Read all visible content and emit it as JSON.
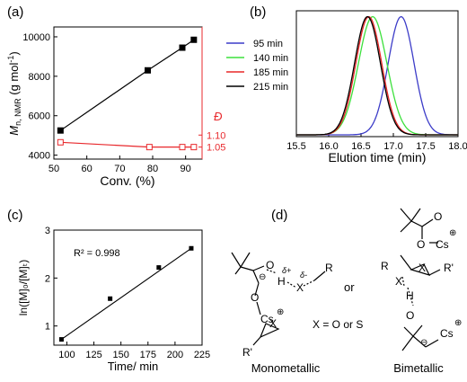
{
  "charts": {
    "a": {
      "panel_label": "(a)",
      "xlabel": "Conv. (%)",
      "ylabel_main": "M",
      "ylabel_sub": "n, NMR",
      "ylabel_unit": " (g mol",
      "ylabel_sup": "-1",
      "ylabel_close": ")",
      "y2label": "Đ",
      "x_ticks": [
        "50",
        "60",
        "70",
        "80",
        "90"
      ],
      "y_ticks": [
        "4000",
        "6000",
        "8000",
        "10000"
      ],
      "y2_ticks": [
        "1.05",
        "1.10"
      ]
    },
    "b": {
      "panel_label": "(b)",
      "xlabel": "Elution time (min)",
      "x_ticks": [
        "15.5",
        "16.0",
        "16.5",
        "17.0",
        "17.5",
        "18.0"
      ]
    },
    "c": {
      "panel_label": "(c)",
      "xlabel": "Time/ min",
      "ylabel": "ln([M]₀/[M]ₜ)",
      "x_ticks": [
        "100",
        "125",
        "150",
        "175",
        "200",
        "225"
      ],
      "y_ticks": [
        "1",
        "2",
        "3"
      ],
      "annotation": "R² = 0.998"
    }
  },
  "scheme": {
    "panel_label": "(d)",
    "or_label": "or",
    "x_label": "X = O or S",
    "mono_label": "Monometallic",
    "bi_label": "Bimetallic",
    "cs": "Cs",
    "o": "O",
    "h": "H",
    "x": "X",
    "r": "R",
    "rp": "R'",
    "delta_plus": "δ+",
    "delta_minus": "δ-",
    "plus": "⊕",
    "minus": "⊖"
  },
  "chart_data": [
    {
      "type": "scatter",
      "xlim": [
        50,
        95
      ],
      "ylim": [
        3800,
        10500
      ],
      "y2lim": [
        1.0,
        1.55
      ],
      "series": [
        {
          "axis": "left",
          "color": "#000000",
          "marker": "filled-square",
          "fit_line": true,
          "x": [
            52,
            78.5,
            89,
            92.5
          ],
          "y": [
            5250,
            8300,
            9450,
            9850
          ]
        },
        {
          "axis": "right",
          "color": "#e8282c",
          "marker": "open-square",
          "connected": true,
          "x": [
            52,
            79,
            89,
            92.5
          ],
          "y": [
            1.07,
            1.05,
            1.05,
            1.05
          ]
        }
      ]
    },
    {
      "type": "line",
      "xlim": [
        15.5,
        18.0
      ],
      "grid": false,
      "legend": "left",
      "series": [
        {
          "name": "95 min",
          "color": "#3c3cc8",
          "peak": 17.12,
          "sigma": 0.2
        },
        {
          "name": "140 min",
          "color": "#3ce03c",
          "peak": 16.68,
          "sigma": 0.22
        },
        {
          "name": "185 min",
          "color": "#e82828",
          "peak": 16.62,
          "sigma": 0.2
        },
        {
          "name": "215 min",
          "color": "#000000",
          "peak": 16.6,
          "sigma": 0.2
        }
      ]
    },
    {
      "type": "scatter",
      "xlim": [
        88,
        225
      ],
      "ylim": [
        0.6,
        3.0
      ],
      "fit_line": {
        "x": [
          95,
          215
        ],
        "y": [
          0.72,
          2.62
        ]
      },
      "series": [
        {
          "color": "#000000",
          "marker": "filled-square",
          "x": [
            95,
            140,
            185,
            215
          ],
          "y": [
            0.72,
            1.57,
            2.22,
            2.62
          ]
        }
      ]
    }
  ]
}
